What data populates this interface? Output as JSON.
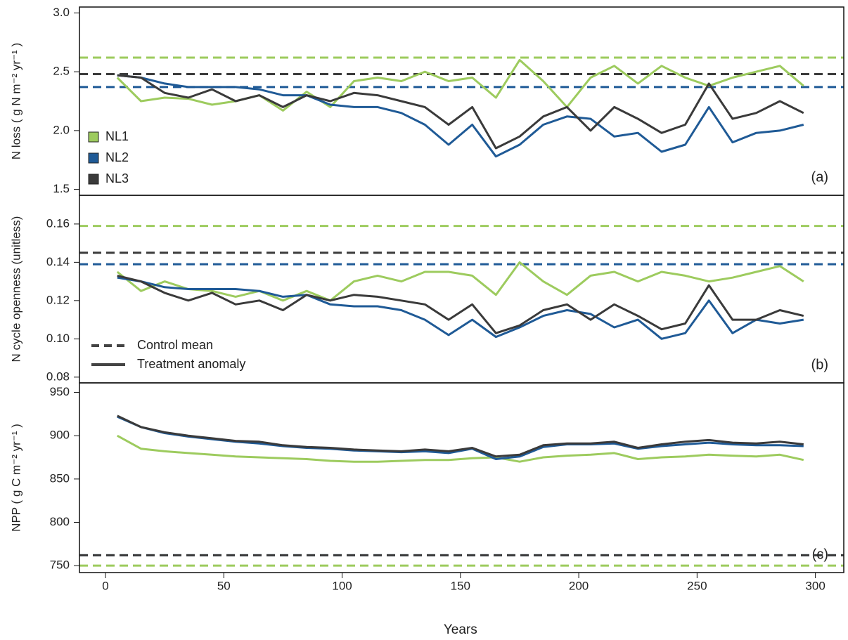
{
  "chart_data": [
    {
      "type": "line",
      "ylabel": "N loss ( g N m⁻² yr⁻¹ )",
      "panel_label": "(a)",
      "xlim": [
        -11,
        312
      ],
      "ylim": [
        1.45,
        3.05
      ],
      "yticks": [
        1.5,
        {
          "value": 2,
          "label": "2.0"
        },
        2.5,
        {
          "value": 3,
          "label": "3.0"
        }
      ],
      "legend": true,
      "x": [
        5,
        15,
        25,
        35,
        45,
        55,
        65,
        75,
        85,
        95,
        105,
        115,
        125,
        135,
        145,
        155,
        165,
        175,
        185,
        195,
        205,
        215,
        225,
        235,
        245,
        255,
        265,
        275,
        285,
        295
      ],
      "series": [
        {
          "name": "NL1",
          "color": "#9dcb5e",
          "control_mean": 2.62,
          "values": [
            2.45,
            2.25,
            2.28,
            2.27,
            2.22,
            2.25,
            2.3,
            2.17,
            2.33,
            2.2,
            2.42,
            2.45,
            2.42,
            2.5,
            2.42,
            2.45,
            2.28,
            2.6,
            2.42,
            2.2,
            2.45,
            2.55,
            2.4,
            2.55,
            2.45,
            2.38,
            2.45,
            2.5,
            2.55,
            2.38
          ]
        },
        {
          "name": "NL2",
          "color": "#1f5a96",
          "control_mean": 2.37,
          "values": [
            2.47,
            2.45,
            2.4,
            2.37,
            2.37,
            2.37,
            2.35,
            2.3,
            2.3,
            2.22,
            2.2,
            2.2,
            2.15,
            2.05,
            1.88,
            2.05,
            1.78,
            1.88,
            2.05,
            2.12,
            2.1,
            1.95,
            1.98,
            1.82,
            1.88,
            2.2,
            1.9,
            1.98,
            2.0,
            2.05
          ]
        },
        {
          "name": "NL3",
          "color": "#3a3a3a",
          "control_mean": 2.48,
          "values": [
            2.47,
            2.45,
            2.32,
            2.28,
            2.35,
            2.25,
            2.3,
            2.2,
            2.3,
            2.25,
            2.32,
            2.3,
            2.25,
            2.2,
            2.05,
            2.2,
            1.85,
            1.95,
            2.12,
            2.2,
            2.0,
            2.2,
            2.1,
            1.98,
            2.05,
            2.4,
            2.1,
            2.15,
            2.25,
            2.15
          ]
        }
      ]
    },
    {
      "type": "line",
      "ylabel": "N cycle openness (unitless)",
      "panel_label": "(b)",
      "xlim": [
        -11,
        312
      ],
      "ylim": [
        0.077,
        0.175
      ],
      "yticks": [
        0.08,
        {
          "value": 0.1,
          "label": "0.10"
        },
        0.12,
        0.14,
        0.16
      ],
      "line_legend": [
        "Control mean",
        "Treatment anomaly"
      ],
      "x": [
        5,
        15,
        25,
        35,
        45,
        55,
        65,
        75,
        85,
        95,
        105,
        115,
        125,
        135,
        145,
        155,
        165,
        175,
        185,
        195,
        205,
        215,
        225,
        235,
        245,
        255,
        265,
        275,
        285,
        295
      ],
      "series": [
        {
          "name": "NL1",
          "color": "#9dcb5e",
          "control_mean": 0.159,
          "values": [
            0.135,
            0.125,
            0.13,
            0.126,
            0.125,
            0.122,
            0.125,
            0.12,
            0.125,
            0.12,
            0.13,
            0.133,
            0.13,
            0.135,
            0.135,
            0.133,
            0.123,
            0.14,
            0.13,
            0.123,
            0.133,
            0.135,
            0.13,
            0.135,
            0.133,
            0.13,
            0.132,
            0.135,
            0.138,
            0.13
          ]
        },
        {
          "name": "NL2",
          "color": "#1f5a96",
          "control_mean": 0.139,
          "values": [
            0.132,
            0.13,
            0.127,
            0.126,
            0.126,
            0.126,
            0.125,
            0.122,
            0.123,
            0.118,
            0.117,
            0.117,
            0.115,
            0.11,
            0.102,
            0.11,
            0.101,
            0.106,
            0.112,
            0.115,
            0.113,
            0.106,
            0.11,
            0.1,
            0.103,
            0.12,
            0.103,
            0.11,
            0.108,
            0.11
          ]
        },
        {
          "name": "NL3",
          "color": "#3a3a3a",
          "control_mean": 0.145,
          "values": [
            0.133,
            0.13,
            0.124,
            0.12,
            0.124,
            0.118,
            0.12,
            0.115,
            0.123,
            0.12,
            0.123,
            0.122,
            0.12,
            0.118,
            0.11,
            0.118,
            0.103,
            0.107,
            0.115,
            0.118,
            0.11,
            0.118,
            0.112,
            0.105,
            0.108,
            0.128,
            0.11,
            0.11,
            0.115,
            0.112
          ]
        }
      ]
    },
    {
      "type": "line",
      "ylabel": "NPP ( g C m⁻² yr⁻¹ )",
      "panel_label": "(c)",
      "xlabel": "Years",
      "xlim": [
        -11,
        312
      ],
      "ylim": [
        742,
        961
      ],
      "xticks": [
        0,
        50,
        100,
        150,
        200,
        250,
        300
      ],
      "yticks": [
        750,
        800,
        850,
        900,
        950
      ],
      "x": [
        5,
        15,
        25,
        35,
        45,
        55,
        65,
        75,
        85,
        95,
        105,
        115,
        125,
        135,
        145,
        155,
        165,
        175,
        185,
        195,
        205,
        215,
        225,
        235,
        245,
        255,
        265,
        275,
        285,
        295
      ],
      "series": [
        {
          "name": "NL1",
          "color": "#9dcb5e",
          "control_mean": 750,
          "values": [
            900,
            885,
            882,
            880,
            878,
            876,
            875,
            874,
            873,
            871,
            870,
            870,
            871,
            872,
            872,
            874,
            875,
            870,
            875,
            877,
            878,
            880,
            873,
            875,
            876,
            878,
            877,
            876,
            878,
            872
          ]
        },
        {
          "name": "NL2",
          "color": "#1f5a96",
          "control_mean": 762,
          "values": [
            922,
            910,
            903,
            899,
            896,
            893,
            891,
            888,
            886,
            885,
            883,
            882,
            881,
            882,
            880,
            885,
            873,
            876,
            887,
            890,
            890,
            891,
            885,
            888,
            890,
            892,
            890,
            889,
            889,
            888
          ]
        },
        {
          "name": "NL3",
          "color": "#3a3a3a",
          "control_mean": 762,
          "values": [
            923,
            910,
            904,
            900,
            897,
            894,
            893,
            889,
            887,
            886,
            884,
            883,
            882,
            884,
            882,
            886,
            876,
            878,
            889,
            891,
            891,
            893,
            886,
            890,
            893,
            895,
            892,
            891,
            893,
            890
          ]
        }
      ]
    }
  ]
}
